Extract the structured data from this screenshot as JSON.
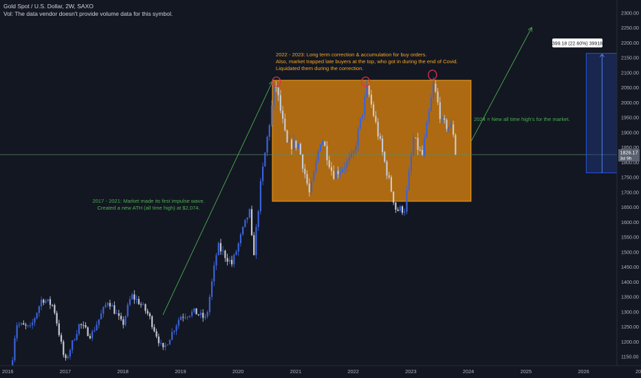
{
  "header": {
    "symbol_line": "Gold Spot / U.S. Dollar, 2W, SAXO",
    "volume_note": "Vol: The data vendor doesn't provide volume data for this symbol."
  },
  "colors": {
    "background": "#131722",
    "bull": "#3b63d9",
    "bear": "#c8cbd3",
    "zone_fill": "#d9820e",
    "zone_border": "#f0a020",
    "green": "#4caf50",
    "orange_text": "#f5a623",
    "circle": "#e0304f",
    "measure_fill": "#1e3a8a",
    "axis_text": "#b2b5be"
  },
  "price_scale": {
    "ticks": [
      2300,
      2250,
      2200,
      2150,
      2100,
      2050,
      2000,
      1950,
      1900,
      1850,
      1800,
      1750,
      1700,
      1650,
      1600,
      1550,
      1500,
      1450,
      1400,
      1350,
      1300,
      1250,
      1200,
      1150
    ]
  },
  "time_scale": {
    "labels": [
      "2016",
      "2017",
      "2018",
      "2019",
      "2020",
      "2021",
      "2022",
      "2023",
      "2024",
      "2025",
      "2026",
      "202"
    ]
  },
  "current_price": {
    "value": "1826.17",
    "countdown": "3d 9h"
  },
  "measure_label": "399.18 (22.60%) 39918",
  "annotations": {
    "impulse_line1": "2017 - 2021: Market made its first impulse wave.",
    "impulse_line2": "Created a new ATH (all time high) at $2,074.",
    "correction_line1": "2022 - 2023: Long term correction & accumulation for buy orders.",
    "correction_line2": "Also, market trapped late buyers at the top, who got in during the end of Covid.",
    "correction_line3": "Liquidated them during the correction.",
    "ath_note": "2024 = New all time high's for the market."
  },
  "chart_data": {
    "type": "candlestick",
    "title": "Gold Spot / U.S. Dollar, 2W, SAXO",
    "interval": "2W",
    "x_range": [
      2016.0,
      2026.6
    ],
    "ylim": [
      1130,
      2315
    ],
    "current_price": 1826.17,
    "anchors": [
      {
        "t": 2016.0,
        "p": 1080
      },
      {
        "t": 2016.1,
        "p": 1260
      },
      {
        "t": 2016.35,
        "p": 1245
      },
      {
        "t": 2016.55,
        "p": 1345
      },
      {
        "t": 2016.75,
        "p": 1320
      },
      {
        "t": 2016.95,
        "p": 1130
      },
      {
        "t": 2017.2,
        "p": 1260
      },
      {
        "t": 2017.4,
        "p": 1220
      },
      {
        "t": 2017.7,
        "p": 1340
      },
      {
        "t": 2017.95,
        "p": 1255
      },
      {
        "t": 2018.1,
        "p": 1355
      },
      {
        "t": 2018.25,
        "p": 1330
      },
      {
        "t": 2018.4,
        "p": 1290
      },
      {
        "t": 2018.65,
        "p": 1170
      },
      {
        "t": 2018.95,
        "p": 1285
      },
      {
        "t": 2019.2,
        "p": 1300
      },
      {
        "t": 2019.4,
        "p": 1275
      },
      {
        "t": 2019.6,
        "p": 1520
      },
      {
        "t": 2019.85,
        "p": 1460
      },
      {
        "t": 2020.15,
        "p": 1640
      },
      {
        "t": 2020.22,
        "p": 1480
      },
      {
        "t": 2020.35,
        "p": 1730
      },
      {
        "t": 2020.6,
        "p": 2070
      },
      {
        "t": 2020.8,
        "p": 1860
      },
      {
        "t": 2021.0,
        "p": 1860
      },
      {
        "t": 2021.2,
        "p": 1690
      },
      {
        "t": 2021.4,
        "p": 1890
      },
      {
        "t": 2021.6,
        "p": 1760
      },
      {
        "t": 2021.75,
        "p": 1780
      },
      {
        "t": 2021.95,
        "p": 1820
      },
      {
        "t": 2022.2,
        "p": 2050
      },
      {
        "t": 2022.5,
        "p": 1800
      },
      {
        "t": 2022.7,
        "p": 1640
      },
      {
        "t": 2022.85,
        "p": 1645
      },
      {
        "t": 2023.0,
        "p": 1880
      },
      {
        "t": 2023.15,
        "p": 1820
      },
      {
        "t": 2023.35,
        "p": 2060
      },
      {
        "t": 2023.5,
        "p": 1930
      },
      {
        "t": 2023.68,
        "p": 1915
      },
      {
        "t": 2023.75,
        "p": 1826
      }
    ],
    "zone": {
      "t_start": 2020.55,
      "t_end": 2024.0,
      "p_low": 1670,
      "p_high": 2075
    },
    "impulse_arrow": {
      "t1": 2018.65,
      "p1": 1290,
      "t2": 2020.55,
      "p2": 2070
    },
    "forecast_arrow": {
      "t1": 2024.0,
      "p1": 1870,
      "t2": 2025.05,
      "p2": 2250
    },
    "measure": {
      "t_start": 2026.0,
      "t_end": 2026.55,
      "p_low": 1765,
      "p_high": 2165,
      "change": 399.18,
      "percent": 22.6
    },
    "top_markers": [
      {
        "t": 2020.62,
        "p": 2070
      },
      {
        "t": 2022.17,
        "p": 2070
      },
      {
        "t": 2023.33,
        "p": 2093
      }
    ]
  }
}
